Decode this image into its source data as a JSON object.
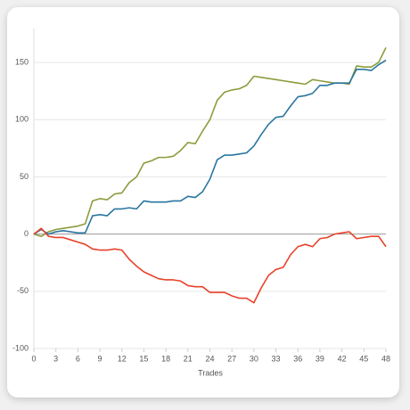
{
  "chart_data": {
    "type": "line",
    "x_label": "Trades",
    "x": [
      0,
      1,
      2,
      3,
      4,
      5,
      6,
      7,
      8,
      9,
      10,
      11,
      12,
      13,
      14,
      15,
      16,
      17,
      18,
      19,
      20,
      21,
      22,
      23,
      24,
      25,
      26,
      27,
      28,
      29,
      30,
      31,
      32,
      33,
      34,
      35,
      36,
      37,
      38,
      39,
      40,
      41,
      42,
      43,
      44,
      45,
      46,
      47,
      48
    ],
    "series": [
      {
        "color": "#8d9c3d",
        "values": [
          0,
          -2,
          2,
          4,
          5,
          6,
          7,
          9,
          29,
          31,
          30,
          35,
          36,
          45,
          50,
          62,
          64,
          67,
          67,
          68,
          73,
          80,
          79,
          90,
          100,
          117,
          124,
          126,
          127,
          130,
          138,
          137,
          136,
          135,
          134,
          133,
          132,
          131,
          135,
          134,
          133,
          132,
          132,
          131,
          147,
          146,
          146,
          150,
          163
        ]
      },
      {
        "color": "#2a76a0",
        "values": [
          0,
          4,
          0,
          2,
          3,
          2,
          1,
          1,
          16,
          17,
          16,
          22,
          22,
          23,
          22,
          29,
          28,
          28,
          28,
          29,
          29,
          33,
          32,
          37,
          48,
          65,
          69,
          69,
          70,
          71,
          77,
          87,
          96,
          102,
          103,
          112,
          120,
          121,
          123,
          130,
          130,
          132,
          132,
          132,
          144,
          144,
          143,
          148,
          152
        ]
      },
      {
        "color": "#e8422a",
        "values": [
          0,
          5,
          -2,
          -3,
          -3,
          -5,
          -7,
          -9,
          -13,
          -14,
          -14,
          -13,
          -14,
          -22,
          -28,
          -33,
          -36,
          -39,
          -40,
          -40,
          -41,
          -45,
          -46,
          -46,
          -51,
          -51,
          -51,
          -54,
          -56,
          -56,
          -60,
          -47,
          -36,
          -31,
          -29,
          -18,
          -11,
          -9,
          -11,
          -4,
          -3,
          0,
          1,
          2,
          -4,
          -3,
          -2,
          -2,
          -11
        ]
      }
    ],
    "xlim": [
      0,
      48
    ],
    "xticks": [
      0,
      3,
      6,
      9,
      12,
      15,
      18,
      21,
      24,
      27,
      30,
      33,
      36,
      39,
      42,
      45,
      48
    ],
    "ylim": [
      -100,
      175
    ],
    "yticks": [
      -100,
      -50,
      0,
      50,
      100,
      150
    ],
    "grid": true
  }
}
